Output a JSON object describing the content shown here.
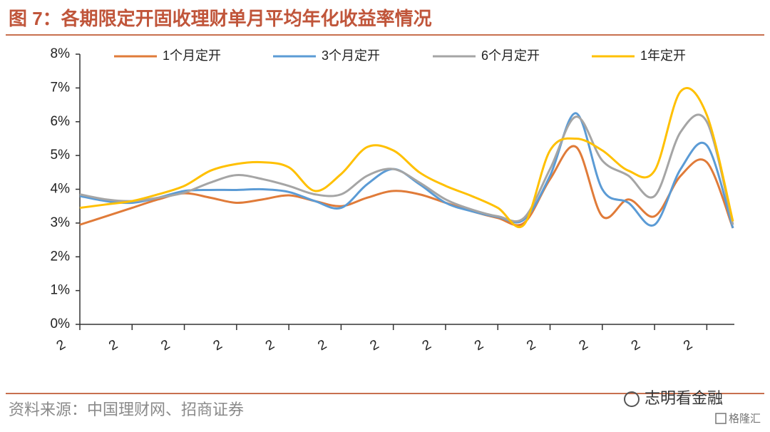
{
  "chart_data": {
    "type": "line",
    "title": "图 7：各期限定开固收理财单月平均年化收益率情况",
    "categories": [
      "2",
      null,
      "2",
      null,
      "2",
      null,
      "2",
      null,
      "2",
      null,
      "2",
      null,
      "2",
      null,
      "2",
      null,
      "2",
      null,
      "2",
      null,
      "2",
      null,
      "2",
      null,
      "2",
      null
    ],
    "series": [
      {
        "name": "1个月定开",
        "color": "#E07B39",
        "values": [
          2.95,
          3.2,
          3.45,
          3.7,
          3.88,
          3.75,
          3.6,
          3.7,
          3.82,
          3.65,
          3.5,
          3.75,
          3.95,
          3.85,
          3.6,
          3.35,
          3.15,
          3.0,
          4.3,
          5.25,
          3.2,
          3.7,
          3.2,
          4.4,
          4.8,
          2.85
        ]
      },
      {
        "name": "3个月定开",
        "color": "#5B9BD5",
        "values": [
          3.8,
          3.65,
          3.6,
          3.75,
          3.95,
          3.98,
          3.98,
          4.0,
          3.92,
          3.65,
          3.45,
          4.15,
          4.6,
          4.15,
          3.6,
          3.35,
          3.18,
          3.1,
          4.4,
          6.25,
          4.0,
          3.6,
          2.95,
          4.6,
          5.3,
          2.85
        ]
      },
      {
        "name": "6个月定开",
        "color": "#A5A5A5",
        "values": [
          3.85,
          3.7,
          3.65,
          3.75,
          3.9,
          4.2,
          4.42,
          4.3,
          4.1,
          3.85,
          3.85,
          4.4,
          4.6,
          4.2,
          3.7,
          3.4,
          3.2,
          3.15,
          4.6,
          6.15,
          4.85,
          4.4,
          3.8,
          5.7,
          6.0,
          2.95
        ]
      },
      {
        "name": "1年定开",
        "color": "#FFC000",
        "values": [
          3.45,
          3.55,
          3.65,
          3.85,
          4.1,
          4.55,
          4.75,
          4.8,
          4.65,
          3.95,
          4.45,
          5.25,
          5.15,
          4.5,
          4.1,
          3.8,
          3.45,
          2.95,
          5.15,
          5.5,
          5.15,
          4.55,
          4.55,
          6.9,
          6.2,
          3.05
        ]
      }
    ],
    "ylim": [
      0,
      8
    ],
    "yticks": [
      {
        "value": 0,
        "label": "0%"
      },
      {
        "value": 1,
        "label": "1%"
      },
      {
        "value": 2,
        "label": "2%"
      },
      {
        "value": 3,
        "label": "3%"
      },
      {
        "value": 4,
        "label": "4%"
      },
      {
        "value": 5,
        "label": "5%"
      },
      {
        "value": 6,
        "label": "6%"
      },
      {
        "value": 7,
        "label": "7%"
      },
      {
        "value": 8,
        "label": "8%"
      }
    ],
    "grid": false,
    "legend": "top"
  },
  "source": "资料来源：中国理财网、招商证券",
  "watermark": "志明看金融",
  "watermark_small": "格隆汇"
}
